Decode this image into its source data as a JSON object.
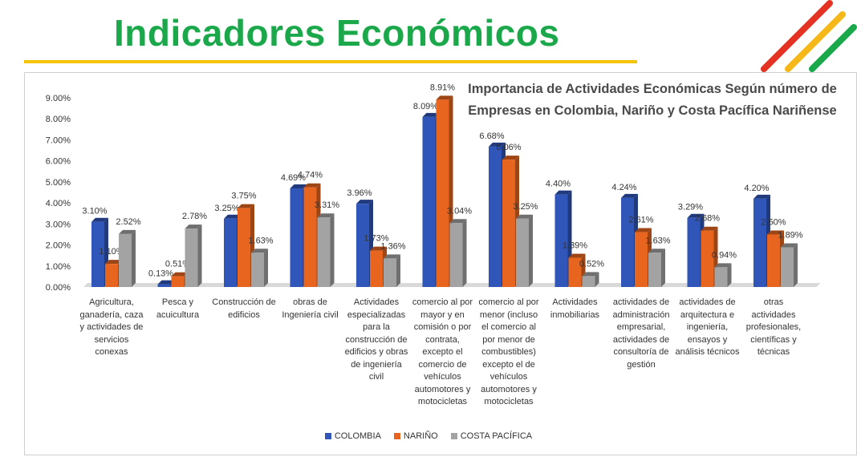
{
  "header": {
    "title": "Indicadores Económicos"
  },
  "colors": {
    "title_green": "#1aa84b",
    "underline_yellow": "#f5c400",
    "stripe_red": "#e53323",
    "stripe_yellow": "#f5b818",
    "stripe_green": "#1aa84b"
  },
  "chart_data": {
    "type": "bar",
    "title": "Importancia de Actividades Económicas Según número de Empresas en Colombia, Nariño y Costa Pacífica Nariñense",
    "ylim": [
      0,
      9
    ],
    "yticks": [
      "0.00%",
      "1.00%",
      "2.00%",
      "3.00%",
      "4.00%",
      "5.00%",
      "6.00%",
      "7.00%",
      "8.00%",
      "9.00%"
    ],
    "grid": false,
    "legend_position": "bottom",
    "categories": [
      "Agricultura, ganadería, caza y actividades de servicios conexas",
      "Pesca y acuicultura",
      "Construcción de edificios",
      "obras de Ingeniería civil",
      "Actividades especializadas para la construcción de edificios y obras de ingeniería civil",
      "comercio al por mayor y en comisión o por contrata, excepto el comercio de vehículos automotores y motocicletas",
      "comercio al por menor (incluso el comercio al por menor de combustibles) excepto el de vehículos automotores y motocicletas",
      "Actividades inmobiliarias",
      "actividades de administración empresarial, actividades de consultoría de gestión",
      "actividades de arquitectura e ingeniería, ensayos y análisis técnicos",
      "otras actividades profesionales, científicas y técnicas"
    ],
    "series": [
      {
        "name": "COLOMBIA",
        "color": "#2f56b8",
        "values": [
          3.1,
          0.13,
          3.25,
          4.69,
          3.96,
          8.09,
          6.68,
          4.4,
          4.24,
          3.29,
          4.2
        ],
        "labels": [
          "3.10%",
          "0.13%",
          "3.25%",
          "4.69%",
          "3.96%",
          "8.09%",
          "6.68%",
          "4.40%",
          "4.24%",
          "3.29%",
          "4.20%"
        ]
      },
      {
        "name": "NARIÑO",
        "color": "#e8651f",
        "values": [
          1.1,
          0.51,
          3.75,
          4.74,
          1.73,
          8.91,
          6.06,
          1.39,
          2.61,
          2.68,
          2.5
        ],
        "labels": [
          "1.10%",
          "0.51%",
          "3.75%",
          "4.74%",
          "1.73%",
          "8.91%",
          "6.06%",
          "1.39%",
          "2.61%",
          "2.68%",
          "2.50%"
        ]
      },
      {
        "name": "COSTA PACÍFICA",
        "color": "#a3a3a3",
        "values": [
          2.52,
          2.78,
          1.63,
          3.31,
          1.36,
          3.04,
          3.25,
          0.52,
          1.63,
          0.94,
          1.89
        ],
        "labels": [
          "2.52%",
          "2.78%",
          "1.63%",
          "3.31%",
          "1.36%",
          "3.04%",
          "3.25%",
          "0.52%",
          "1.63%",
          "0.94%",
          "1.89%"
        ]
      }
    ]
  }
}
